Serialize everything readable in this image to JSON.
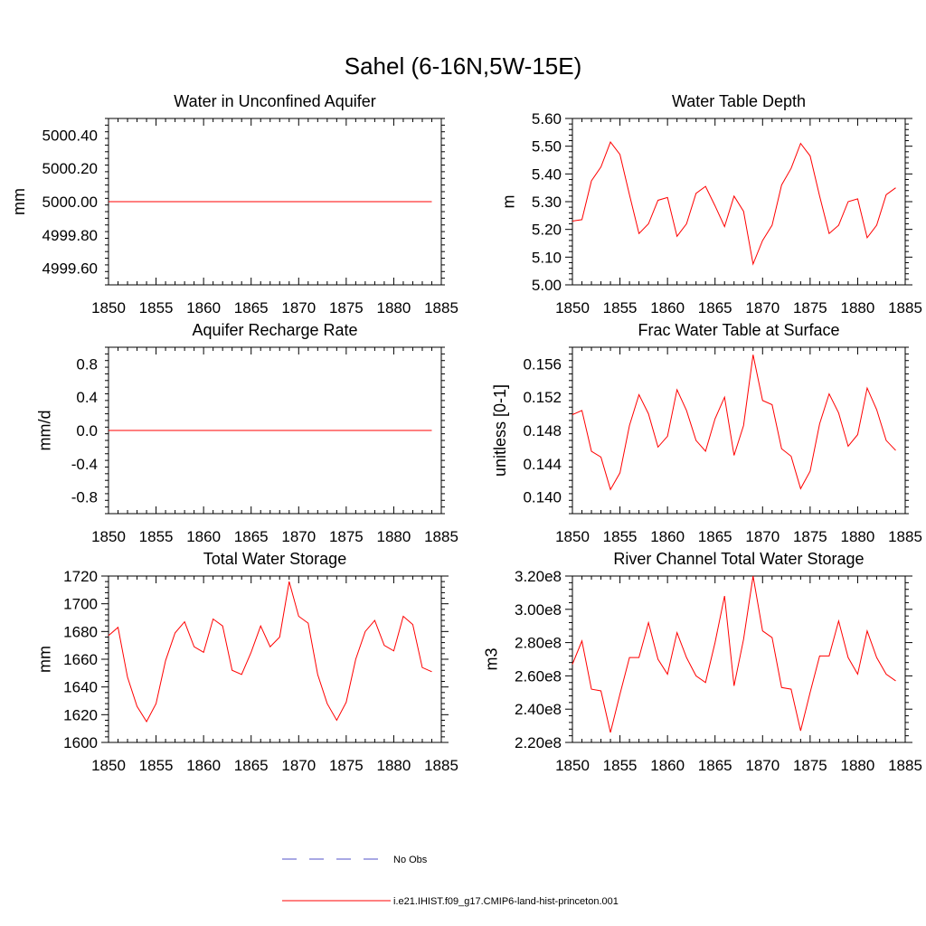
{
  "figure": {
    "title": "Sahel (6-16N,5W-15E)",
    "colors": {
      "model": "#ff0000",
      "obs": "#5050c8"
    }
  },
  "legend": {
    "entries": [
      {
        "label": "No Obs",
        "style": "dashed",
        "color": "#5050c8"
      },
      {
        "label": "i.e21.IHIST.f09_g17.CMIP6-land-hist-princeton.001",
        "style": "solid",
        "color": "#ff0000"
      }
    ]
  },
  "chart_data": [
    {
      "type": "line",
      "title": "Water in Unconfined Aquifer",
      "ylabel": "mm",
      "xlim": [
        1850,
        1885
      ],
      "ylim": [
        4999.5,
        5000.5
      ],
      "x_ticks": [
        1850,
        1855,
        1860,
        1865,
        1870,
        1875,
        1880,
        1885
      ],
      "y_ticks": [
        4999.6,
        4999.8,
        5000.0,
        5000.2,
        5000.4
      ],
      "y_tick_labels": [
        "4999.60",
        "4999.80",
        "5000.00",
        "5000.20",
        "5000.40"
      ],
      "grid": false,
      "series": [
        {
          "name": "i.e21.IHIST.f09_g17.CMIP6-land-hist-princeton.001",
          "x": [
            1850,
            1884
          ],
          "y": [
            5000.0,
            5000.0
          ]
        }
      ]
    },
    {
      "type": "line",
      "title": "Water Table Depth",
      "ylabel": "m",
      "xlim": [
        1850,
        1885
      ],
      "ylim": [
        5.0,
        5.6
      ],
      "x_ticks": [
        1850,
        1855,
        1860,
        1865,
        1870,
        1875,
        1880,
        1885
      ],
      "y_ticks": [
        5.0,
        5.1,
        5.2,
        5.3,
        5.4,
        5.5,
        5.6
      ],
      "y_tick_labels": [
        "5.00",
        "5.10",
        "5.20",
        "5.30",
        "5.40",
        "5.50",
        "5.60"
      ],
      "grid": false,
      "series": [
        {
          "name": "i.e21.IHIST.f09_g17.CMIP6-land-hist-princeton.001",
          "x": [
            1850,
            1851,
            1852,
            1853,
            1854,
            1855,
            1856,
            1857,
            1858,
            1859,
            1860,
            1861,
            1862,
            1863,
            1864,
            1865,
            1866,
            1867,
            1868,
            1869,
            1870,
            1871,
            1872,
            1873,
            1874,
            1875,
            1876,
            1877,
            1878,
            1879,
            1880,
            1881,
            1882,
            1883,
            1884
          ],
          "y": [
            5.23,
            5.235,
            5.375,
            5.425,
            5.515,
            5.47,
            5.325,
            5.185,
            5.22,
            5.305,
            5.315,
            5.175,
            5.22,
            5.33,
            5.355,
            5.285,
            5.21,
            5.32,
            5.265,
            5.075,
            5.16,
            5.215,
            5.36,
            5.42,
            5.51,
            5.465,
            5.32,
            5.185,
            5.215,
            5.3,
            5.31,
            5.17,
            5.215,
            5.325,
            5.35
          ]
        }
      ]
    },
    {
      "type": "line",
      "title": "Aquifer Recharge Rate",
      "ylabel": "mm/d",
      "xlim": [
        1850,
        1885
      ],
      "ylim": [
        -1.0,
        1.0
      ],
      "x_ticks": [
        1850,
        1855,
        1860,
        1865,
        1870,
        1875,
        1880,
        1885
      ],
      "y_ticks": [
        -0.8,
        -0.4,
        0.0,
        0.4,
        0.8
      ],
      "y_tick_labels": [
        "-0.8",
        "-0.4",
        "0.0",
        "0.4",
        "0.8"
      ],
      "grid": false,
      "series": [
        {
          "name": "i.e21.IHIST.f09_g17.CMIP6-land-hist-princeton.001",
          "x": [
            1850,
            1884
          ],
          "y": [
            0.0,
            0.0
          ]
        }
      ]
    },
    {
      "type": "line",
      "title": "Frac Water Table at Surface",
      "ylabel": "unitless [0-1]",
      "xlim": [
        1850,
        1885
      ],
      "ylim": [
        0.138,
        0.158
      ],
      "x_ticks": [
        1850,
        1855,
        1860,
        1865,
        1870,
        1875,
        1880,
        1885
      ],
      "y_ticks": [
        0.14,
        0.144,
        0.148,
        0.152,
        0.156
      ],
      "y_tick_labels": [
        "0.140",
        "0.144",
        "0.148",
        "0.152",
        "0.156"
      ],
      "grid": false,
      "series": [
        {
          "name": "i.e21.IHIST.f09_g17.CMIP6-land-hist-princeton.001",
          "x": [
            1850,
            1851,
            1852,
            1853,
            1854,
            1855,
            1856,
            1857,
            1858,
            1859,
            1860,
            1861,
            1862,
            1863,
            1864,
            1865,
            1866,
            1867,
            1868,
            1869,
            1870,
            1871,
            1872,
            1873,
            1874,
            1875,
            1876,
            1877,
            1878,
            1879,
            1880,
            1881,
            1882,
            1883,
            1884
          ],
          "y": [
            0.1499,
            0.1504,
            0.1455,
            0.1448,
            0.1409,
            0.1429,
            0.1486,
            0.1523,
            0.15,
            0.146,
            0.1473,
            0.1529,
            0.1504,
            0.1468,
            0.1455,
            0.1494,
            0.152,
            0.145,
            0.1486,
            0.1571,
            0.1516,
            0.1511,
            0.1458,
            0.1449,
            0.141,
            0.1431,
            0.1488,
            0.1524,
            0.1501,
            0.1461,
            0.1475,
            0.1531,
            0.1505,
            0.1468,
            0.1456
          ]
        }
      ]
    },
    {
      "type": "line",
      "title": "Total Water Storage",
      "ylabel": "mm",
      "xlim": [
        1850,
        1885
      ],
      "ylim": [
        1600,
        1720
      ],
      "x_ticks": [
        1850,
        1855,
        1860,
        1865,
        1870,
        1875,
        1880,
        1885
      ],
      "y_ticks": [
        1600,
        1620,
        1640,
        1660,
        1680,
        1700,
        1720
      ],
      "y_tick_labels": [
        "1600",
        "1620",
        "1640",
        "1660",
        "1680",
        "1700",
        "1720"
      ],
      "grid": false,
      "series": [
        {
          "name": "i.e21.IHIST.f09_g17.CMIP6-land-hist-princeton.001",
          "x": [
            1850,
            1851,
            1852,
            1853,
            1854,
            1855,
            1856,
            1857,
            1858,
            1859,
            1860,
            1861,
            1862,
            1863,
            1864,
            1865,
            1866,
            1867,
            1868,
            1869,
            1870,
            1871,
            1872,
            1873,
            1874,
            1875,
            1876,
            1877,
            1878,
            1879,
            1880,
            1881,
            1882,
            1883,
            1884
          ],
          "y": [
            1677,
            1683,
            1647,
            1626,
            1615,
            1628,
            1659,
            1679,
            1687,
            1669,
            1665,
            1689,
            1684,
            1652,
            1649,
            1665,
            1684,
            1669,
            1676,
            1716,
            1691,
            1686,
            1649,
            1628,
            1616,
            1629,
            1660,
            1680,
            1688,
            1670,
            1666,
            1691,
            1685,
            1654,
            1651
          ]
        }
      ]
    },
    {
      "type": "line",
      "title": "River Channel Total Water Storage",
      "ylabel": "m3",
      "xlim": [
        1850,
        1885
      ],
      "ylim": [
        220000000.0,
        320000000.0
      ],
      "x_ticks": [
        1850,
        1855,
        1860,
        1865,
        1870,
        1875,
        1880,
        1885
      ],
      "y_ticks": [
        220000000.0,
        240000000.0,
        260000000.0,
        280000000.0,
        300000000.0,
        320000000.0
      ],
      "y_tick_labels": [
        "2.20e8",
        "2.40e8",
        "2.60e8",
        "2.80e8",
        "3.00e8",
        "3.20e8"
      ],
      "grid": false,
      "series": [
        {
          "name": "i.e21.IHIST.f09_g17.CMIP6-land-hist-princeton.001",
          "x": [
            1850,
            1851,
            1852,
            1853,
            1854,
            1855,
            1856,
            1857,
            1858,
            1859,
            1860,
            1861,
            1862,
            1863,
            1864,
            1865,
            1866,
            1867,
            1868,
            1869,
            1870,
            1871,
            1872,
            1873,
            1874,
            1875,
            1876,
            1877,
            1878,
            1879,
            1880,
            1881,
            1882,
            1883,
            1884
          ],
          "y": [
            267000000.0,
            281000000.0,
            252000000.0,
            251000000.0,
            226000000.0,
            249000000.0,
            271000000.0,
            271000000.0,
            292000000.0,
            270000000.0,
            261000000.0,
            286000000.0,
            271000000.0,
            260000000.0,
            256000000.0,
            280000000.0,
            308000000.0,
            254000000.0,
            282000000.0,
            320000000.0,
            287000000.0,
            283000000.0,
            253000000.0,
            252000000.0,
            227000000.0,
            250000000.0,
            272000000.0,
            272000000.0,
            293000000.0,
            271000000.0,
            261000000.0,
            287000000.0,
            271000000.0,
            261000000.0,
            257000000.0
          ]
        }
      ]
    }
  ]
}
